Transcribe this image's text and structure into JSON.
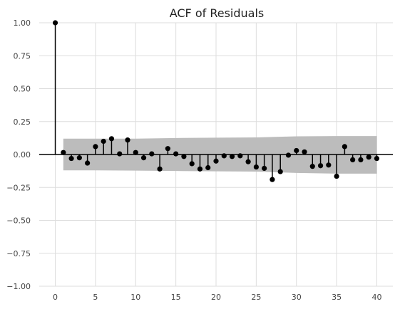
{
  "chart_data": {
    "type": "stem",
    "title": "ACF of Residuals",
    "xlabel": "",
    "ylabel": "",
    "xlim": [
      -2,
      42
    ],
    "ylim": [
      -1.0,
      1.0
    ],
    "xticks": [
      0,
      5,
      10,
      15,
      20,
      25,
      30,
      35,
      40
    ],
    "yticks": [
      -1.0,
      -0.75,
      -0.5,
      -0.25,
      0.0,
      0.25,
      0.5,
      0.75,
      1.0
    ],
    "xtick_labels": [
      "0",
      "5",
      "10",
      "15",
      "20",
      "25",
      "30",
      "35",
      "40"
    ],
    "ytick_labels": [
      "−1.00",
      "−0.75",
      "−0.50",
      "−0.25",
      "0.00",
      "0.25",
      "0.50",
      "0.75",
      "1.00"
    ],
    "grid": true,
    "lags": [
      0,
      1,
      2,
      3,
      4,
      5,
      6,
      7,
      8,
      9,
      10,
      11,
      12,
      13,
      14,
      15,
      16,
      17,
      18,
      19,
      20,
      21,
      22,
      23,
      24,
      25,
      26,
      27,
      28,
      29,
      30,
      31,
      32,
      33,
      34,
      35,
      36,
      37,
      38,
      39,
      40
    ],
    "values": [
      1.0,
      0.015,
      -0.03,
      -0.025,
      -0.065,
      0.06,
      0.1,
      0.12,
      0.005,
      0.11,
      0.015,
      -0.025,
      0.005,
      -0.11,
      0.045,
      0.005,
      -0.015,
      -0.07,
      -0.11,
      -0.1,
      -0.05,
      -0.01,
      -0.015,
      -0.01,
      -0.055,
      -0.095,
      -0.105,
      -0.19,
      -0.13,
      -0.005,
      0.03,
      0.02,
      -0.09,
      -0.085,
      -0.08,
      -0.165,
      0.06,
      -0.04,
      -0.04,
      -0.02,
      -0.03
    ],
    "confidence_band": {
      "lags": [
        1,
        5,
        10,
        15,
        20,
        25,
        30,
        35,
        40
      ],
      "upper": [
        0.12,
        0.12,
        0.12,
        0.125,
        0.128,
        0.13,
        0.138,
        0.14,
        0.14
      ],
      "lower": [
        -0.12,
        -0.12,
        -0.122,
        -0.125,
        -0.128,
        -0.13,
        -0.14,
        -0.145,
        -0.145
      ]
    },
    "colors": {
      "stem": "#000000",
      "marker": "#000000",
      "band": "#bcbcbc",
      "grid": "#dddddd",
      "zero_line": "#000000"
    }
  }
}
